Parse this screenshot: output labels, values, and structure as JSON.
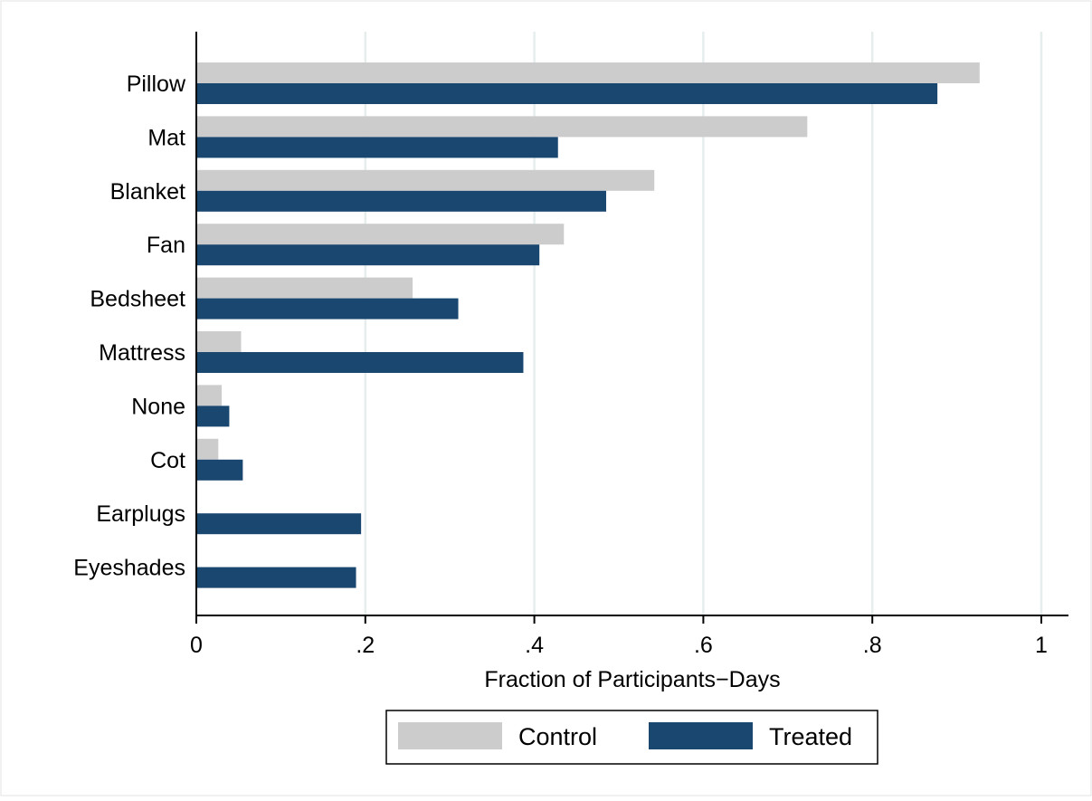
{
  "chart_data": {
    "type": "bar",
    "orientation": "horizontal",
    "categories": [
      "Pillow",
      "Mat",
      "Blanket",
      "Fan",
      "Bedsheet",
      "Mattress",
      "None",
      "Cot",
      "Earplugs",
      "Eyeshades"
    ],
    "series": [
      {
        "name": "Control",
        "color": "#cccccc",
        "values": [
          0.927,
          0.723,
          0.542,
          0.435,
          0.256,
          0.053,
          0.03,
          0.026,
          0.0,
          0.0
        ]
      },
      {
        "name": "Treated",
        "color": "#1a476f",
        "values": [
          0.877,
          0.428,
          0.485,
          0.406,
          0.31,
          0.387,
          0.039,
          0.055,
          0.195,
          0.189
        ]
      }
    ],
    "title": "",
    "xlabel": "Fraction of Participants−Days",
    "ylabel": "",
    "xlim": [
      0,
      1.03
    ],
    "xticks": [
      0,
      0.2,
      0.4,
      0.6,
      0.8,
      1
    ],
    "xtick_labels": [
      "0",
      ".2",
      ".4",
      ".6",
      ".8",
      "1"
    ],
    "grid": "vertical",
    "legend": {
      "position": "bottom",
      "entries": [
        "Control",
        "Treated"
      ]
    }
  }
}
